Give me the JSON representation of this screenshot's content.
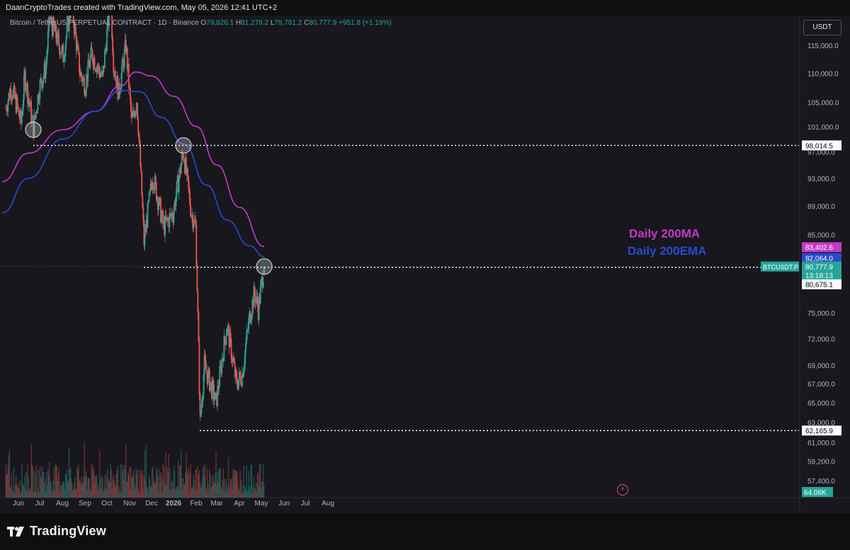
{
  "header": {
    "attribution": "DaanCryptoTrades created with TradingView.com, May 05, 2026 12:41 UTC+2"
  },
  "legend": {
    "symbol": "Bitcoin / TetherUS PERPETUAL CONTRACT · 1D · Binance",
    "o_key": "O",
    "o_val": "79,826.1",
    "h_key": "H",
    "h_val": "81,278.2",
    "l_key": "L",
    "l_val": "79,761.2",
    "c_key": "C",
    "c_val": "80,777.9",
    "change": "+951.8 (+1.19%)"
  },
  "currency_button": "USDT",
  "brand": {
    "name": "TradingView",
    "logo_icon": "tradingview-logo-icon"
  },
  "colors": {
    "up": "#26a69a",
    "down": "#ef5350",
    "ma": "#c23cc6",
    "ema": "#2a4ad1",
    "background": "#17171d"
  },
  "chart_data": {
    "type": "candlestick",
    "symbol": "BTCUSDT.P",
    "timeframe": "1D",
    "y_scale": "log",
    "ylim": [
      57000,
      119500
    ],
    "grid": false,
    "x_ticks": [
      "Jun",
      "Jul",
      "Aug",
      "Sep",
      "Oct",
      "Nov",
      "Dec",
      "2026",
      "Feb",
      "Mar",
      "Apr",
      "May",
      "Jun",
      "Jul",
      "Aug"
    ],
    "y_ticks": [
      "115,000.0",
      "110,000.0",
      "105,000.0",
      "101,000.0",
      "97,000.0",
      "93,000.0",
      "89,000.0",
      "85,000.0",
      "75,000.0",
      "72,000.0",
      "69,000.0",
      "67,000.0",
      "65,000.0",
      "63,000.0",
      "61,000.0",
      "59,200.0",
      "57,400.0"
    ],
    "y_tick_values": [
      115000,
      110000,
      105000,
      101000,
      97000,
      93000,
      89000,
      85000,
      75000,
      72000,
      69000,
      67000,
      65000,
      63000,
      61000,
      59200,
      57400
    ],
    "price_path": [
      [
        "2025-05-15",
        104000
      ],
      [
        "2025-05-22",
        107500
      ],
      [
        "2025-05-30",
        104500
      ],
      [
        "2025-06-05",
        101500
      ],
      [
        "2025-06-10",
        109500
      ],
      [
        "2025-06-22",
        100800
      ],
      [
        "2025-06-30",
        107500
      ],
      [
        "2025-07-09",
        111000
      ],
      [
        "2025-07-14",
        120000
      ],
      [
        "2025-07-25",
        116000
      ],
      [
        "2025-08-02",
        113000
      ],
      [
        "2025-08-13",
        123000
      ],
      [
        "2025-08-25",
        110000
      ],
      [
        "2025-09-01",
        108000
      ],
      [
        "2025-09-10",
        113500
      ],
      [
        "2025-09-25",
        109000
      ],
      [
        "2025-10-06",
        124000
      ],
      [
        "2025-10-10",
        112000
      ],
      [
        "2025-10-17",
        106500
      ],
      [
        "2025-10-27",
        115000
      ],
      [
        "2025-11-04",
        101500
      ],
      [
        "2025-11-11",
        105500
      ],
      [
        "2025-11-21",
        84000
      ],
      [
        "2025-12-03",
        93500
      ],
      [
        "2025-12-18",
        86000
      ],
      [
        "2025-12-31",
        88000
      ],
      [
        "2026-01-14",
        97000
      ],
      [
        "2026-01-25",
        88000
      ],
      [
        "2026-01-31",
        86000
      ],
      [
        "2026-02-06",
        63000
      ],
      [
        "2026-02-12",
        69000
      ],
      [
        "2026-02-28",
        65000
      ],
      [
        "2026-03-15",
        73500
      ],
      [
        "2026-03-28",
        67000
      ],
      [
        "2026-04-05",
        68000
      ],
      [
        "2026-04-15",
        74500
      ],
      [
        "2026-04-22",
        77500
      ],
      [
        "2026-04-27",
        75500
      ],
      [
        "2026-05-05",
        80777.9
      ]
    ],
    "series": [
      {
        "name": "Daily 200MA",
        "color": "#c23cc6",
        "points": [
          [
            "2025-05-10",
            92500
          ],
          [
            "2025-06-15",
            96800
          ],
          [
            "2025-08-01",
            100500
          ],
          [
            "2025-09-15",
            103500
          ],
          [
            "2025-10-20",
            107800
          ],
          [
            "2025-11-10",
            110200
          ],
          [
            "2025-12-01",
            109500
          ],
          [
            "2026-01-01",
            106000
          ],
          [
            "2026-02-01",
            101000
          ],
          [
            "2026-03-01",
            95000
          ],
          [
            "2026-04-01",
            88800
          ],
          [
            "2026-05-05",
            83402.6
          ]
        ]
      },
      {
        "name": "Daily 200EMA",
        "color": "#2a4ad1",
        "points": [
          [
            "2025-05-10",
            88000
          ],
          [
            "2025-06-15",
            93000
          ],
          [
            "2025-08-01",
            99000
          ],
          [
            "2025-09-15",
            103500
          ],
          [
            "2025-10-20",
            107000
          ],
          [
            "2025-11-15",
            106800
          ],
          [
            "2025-12-15",
            102500
          ],
          [
            "2026-01-15",
            98200
          ],
          [
            "2026-02-15",
            92000
          ],
          [
            "2026-03-15",
            87000
          ],
          [
            "2026-04-15",
            83500
          ],
          [
            "2026-05-05",
            82064.0
          ]
        ]
      }
    ],
    "horizontal_levels": [
      {
        "value": 98014.5,
        "label": "98,014.5",
        "from": "2025-06-22"
      },
      {
        "value": 80675.1,
        "label": "80,675.1",
        "from": "2025-11-21"
      },
      {
        "value": 62165.9,
        "label": "62,165.9",
        "from": "2026-02-06"
      }
    ],
    "circled_points": [
      [
        "2025-06-22",
        100500
      ],
      [
        "2026-01-14",
        98000
      ],
      [
        "2026-05-05",
        80777.9
      ]
    ],
    "annotations": [
      {
        "text": "Daily 200MA",
        "color": "#c23cc6"
      },
      {
        "text": "Daily 200EMA",
        "color": "#2a4ad1"
      }
    ],
    "price_labels": [
      {
        "text": "83,402.6",
        "value": 83402.6,
        "color": "#c23cc6"
      },
      {
        "text": "82,064.0",
        "value": 82064.0,
        "color": "#2a4ad1"
      },
      {
        "text": "80,777.9",
        "value": 80777.9,
        "color": "#26a69a"
      },
      {
        "text": "13:18:13",
        "value": 80000,
        "color": "#26a69a"
      },
      {
        "text": "98,014.5",
        "value": 98014.5,
        "color": "#ffffff"
      },
      {
        "text": "80,675.1",
        "value": 80675.1,
        "color": "#ffffff"
      },
      {
        "text": "62,165.9",
        "value": 62165.9,
        "color": "#ffffff"
      }
    ],
    "symbol_tag": "BTCUSDT.P",
    "volume_label": "64.06K"
  }
}
